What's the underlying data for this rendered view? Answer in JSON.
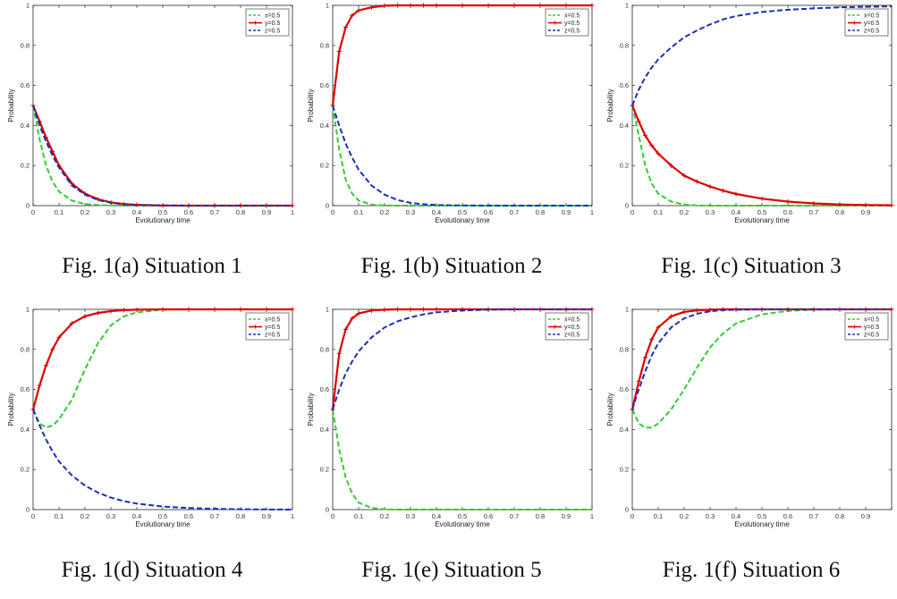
{
  "chart_data": [
    {
      "type": "line",
      "caption": "Fig. 1(a) Situation 1",
      "xlabel": "Evolutionary time",
      "ylabel": "Probability",
      "xlim": [
        0,
        1
      ],
      "ylim": [
        0,
        1
      ],
      "x_ticks": [
        "0",
        "0.1",
        "0.2",
        "0.3",
        "0.4",
        "0.5",
        "0.6",
        "0.7",
        "0.8",
        "0.9",
        "1"
      ],
      "y_ticks": [
        "0",
        "0.2",
        "0.4",
        "0.6",
        "0.8",
        "1"
      ],
      "legend_position": "top-right",
      "x": [
        0,
        0.025,
        0.05,
        0.075,
        0.1,
        0.15,
        0.2,
        0.25,
        0.3,
        0.35,
        0.4,
        0.5,
        0.6,
        0.7,
        0.8,
        0.9,
        1
      ],
      "series": [
        {
          "name": "x=0.5",
          "color": "#33cc33",
          "style": "dashed",
          "values": [
            0.5,
            0.33,
            0.2,
            0.12,
            0.07,
            0.025,
            0.008,
            0.003,
            0.001,
            0,
            0,
            0,
            0,
            0,
            0,
            0,
            0
          ]
        },
        {
          "name": "y=0.5",
          "color": "#dd0000",
          "style": "solid-plus",
          "values": [
            0.5,
            0.42,
            0.34,
            0.27,
            0.2,
            0.11,
            0.06,
            0.032,
            0.016,
            0.008,
            0.004,
            0.001,
            0,
            0,
            0,
            0,
            0
          ]
        },
        {
          "name": "z=0.5",
          "color": "#1c2fb5",
          "style": "dashed",
          "values": [
            0.5,
            0.4,
            0.32,
            0.25,
            0.19,
            0.1,
            0.055,
            0.028,
            0.014,
            0.007,
            0.003,
            0.001,
            0,
            0,
            0,
            0,
            0
          ]
        }
      ]
    },
    {
      "type": "line",
      "caption": "Fig. 1(b) Situation 2",
      "xlabel": "Evolutionary time",
      "ylabel": "Probability",
      "xlim": [
        0,
        1
      ],
      "ylim": [
        0,
        1
      ],
      "x_ticks": [
        "0",
        "0.1",
        "0.2",
        "0.3",
        "0.4",
        "0.5",
        "0.6",
        "0.7",
        "0.8",
        "0.9",
        "1"
      ],
      "y_ticks": [
        "0",
        "0.2",
        "0.4",
        "0.6",
        "0.8",
        "1"
      ],
      "legend_position": "top-right",
      "x": [
        0,
        0.025,
        0.05,
        0.075,
        0.1,
        0.15,
        0.2,
        0.25,
        0.3,
        0.35,
        0.4,
        0.5,
        0.6,
        0.7,
        0.8,
        0.9,
        1
      ],
      "series": [
        {
          "name": "x=0.5",
          "color": "#33cc33",
          "style": "dashed",
          "values": [
            0.5,
            0.28,
            0.13,
            0.06,
            0.025,
            0.005,
            0.001,
            0,
            0,
            0,
            0,
            0,
            0,
            0,
            0,
            0,
            0
          ]
        },
        {
          "name": "y=0.5",
          "color": "#dd0000",
          "style": "solid-plus",
          "values": [
            0.5,
            0.77,
            0.89,
            0.95,
            0.975,
            0.99,
            0.998,
            1,
            1,
            1,
            1,
            1,
            1,
            1,
            1,
            1,
            1
          ]
        },
        {
          "name": "z=0.5",
          "color": "#1c2fb5",
          "style": "dashed",
          "values": [
            0.5,
            0.4,
            0.31,
            0.24,
            0.18,
            0.1,
            0.055,
            0.028,
            0.014,
            0.007,
            0.003,
            0.001,
            0,
            0,
            0,
            0,
            0
          ]
        }
      ]
    },
    {
      "type": "line",
      "caption": "Fig. 1(c) Situation 3",
      "xlabel": "Evolutionary time",
      "ylabel": "Probability",
      "xlim": [
        0,
        1
      ],
      "ylim": [
        0,
        1
      ],
      "x_ticks": [
        "0",
        "0.1",
        "0.2",
        "0.3",
        "0.4",
        "0.5",
        "0.6",
        "0.7",
        "0.8",
        "0.9",
        ""
      ],
      "y_ticks": [
        "0",
        "0.2",
        "0.4",
        "0.6",
        "0.8",
        "1"
      ],
      "legend_position": "top-right",
      "x": [
        0,
        0.025,
        0.05,
        0.075,
        0.1,
        0.15,
        0.2,
        0.25,
        0.3,
        0.35,
        0.4,
        0.5,
        0.6,
        0.7,
        0.8,
        0.9,
        1
      ],
      "series": [
        {
          "name": "x=0.5",
          "color": "#33cc33",
          "style": "dashed",
          "values": [
            0.5,
            0.35,
            0.2,
            0.11,
            0.06,
            0.02,
            0.005,
            0.001,
            0,
            0,
            0,
            0,
            0,
            0,
            0,
            0,
            0
          ]
        },
        {
          "name": "y=0.5",
          "color": "#dd0000",
          "style": "solid-plus",
          "values": [
            0.5,
            0.42,
            0.35,
            0.3,
            0.26,
            0.2,
            0.15,
            0.12,
            0.095,
            0.075,
            0.058,
            0.035,
            0.02,
            0.011,
            0.006,
            0.003,
            0.002
          ]
        },
        {
          "name": "z=0.5",
          "color": "#1c2fb5",
          "style": "dashed",
          "values": [
            0.5,
            0.58,
            0.64,
            0.69,
            0.73,
            0.79,
            0.84,
            0.875,
            0.905,
            0.93,
            0.947,
            0.967,
            0.978,
            0.985,
            0.99,
            0.993,
            0.995
          ]
        }
      ]
    },
    {
      "type": "line",
      "caption": "Fig. 1(d) Situation 4",
      "xlabel": "Evolutionary time",
      "ylabel": "Probability",
      "xlim": [
        0,
        1
      ],
      "ylim": [
        0,
        1
      ],
      "x_ticks": [
        "0",
        "0.1",
        "0.2",
        "0.3",
        "0.4",
        "0.5",
        "0.6",
        "0.7",
        "0.8",
        "0.9",
        "1"
      ],
      "y_ticks": [
        "0",
        "0.2",
        "0.4",
        "0.6",
        "0.8",
        "1"
      ],
      "legend_position": "top-right",
      "x": [
        0,
        0.025,
        0.05,
        0.075,
        0.1,
        0.15,
        0.2,
        0.25,
        0.3,
        0.35,
        0.4,
        0.5,
        0.6,
        0.7,
        0.8,
        0.9,
        1
      ],
      "series": [
        {
          "name": "x=0.5",
          "color": "#33cc33",
          "style": "dashed",
          "values": [
            0.5,
            0.43,
            0.41,
            0.42,
            0.45,
            0.55,
            0.7,
            0.83,
            0.92,
            0.965,
            0.985,
            0.998,
            1,
            1,
            1,
            1,
            1
          ]
        },
        {
          "name": "y=0.5",
          "color": "#dd0000",
          "style": "solid-plus",
          "values": [
            0.5,
            0.62,
            0.72,
            0.8,
            0.86,
            0.93,
            0.965,
            0.982,
            0.991,
            0.996,
            0.998,
            1,
            1,
            1,
            1,
            1,
            1
          ]
        },
        {
          "name": "z=0.5",
          "color": "#1c2fb5",
          "style": "dashed",
          "values": [
            0.5,
            0.42,
            0.35,
            0.29,
            0.24,
            0.17,
            0.12,
            0.085,
            0.06,
            0.042,
            0.03,
            0.015,
            0.008,
            0.004,
            0.002,
            0.001,
            0
          ]
        }
      ]
    },
    {
      "type": "line",
      "caption": "Fig. 1(e) Situation 5",
      "xlabel": "Evolutionary time",
      "ylabel": "Probability",
      "xlim": [
        0,
        1
      ],
      "ylim": [
        0,
        1
      ],
      "x_ticks": [
        "0",
        "0.1",
        "0.2",
        "0.3",
        "0.4",
        "0.5",
        "0.6",
        "0.7",
        "0.8",
        "0.9",
        "1"
      ],
      "y_ticks": [
        "0",
        "0.2",
        "0.4",
        "0.6",
        "0.8",
        "1"
      ],
      "legend_position": "top-right",
      "x": [
        0,
        0.025,
        0.05,
        0.075,
        0.1,
        0.15,
        0.2,
        0.25,
        0.3,
        0.35,
        0.4,
        0.5,
        0.6,
        0.7,
        0.8,
        0.9,
        1
      ],
      "series": [
        {
          "name": "x=0.5",
          "color": "#33cc33",
          "style": "dashed",
          "values": [
            0.5,
            0.3,
            0.16,
            0.08,
            0.035,
            0.008,
            0.002,
            0,
            0,
            0,
            0,
            0,
            0,
            0,
            0,
            0,
            0
          ]
        },
        {
          "name": "y=0.5",
          "color": "#dd0000",
          "style": "solid-plus",
          "values": [
            0.5,
            0.78,
            0.9,
            0.955,
            0.98,
            0.994,
            0.998,
            1,
            1,
            1,
            1,
            1,
            1,
            1,
            1,
            1,
            1
          ]
        },
        {
          "name": "z=0.5",
          "color": "#1c2fb5",
          "style": "dashed",
          "values": [
            0.5,
            0.6,
            0.68,
            0.74,
            0.79,
            0.86,
            0.91,
            0.94,
            0.96,
            0.975,
            0.985,
            0.994,
            0.998,
            1,
            1,
            1,
            1
          ]
        }
      ]
    },
    {
      "type": "line",
      "caption": "Fig. 1(f) Situation 6",
      "xlabel": "Evolutionary time",
      "ylabel": "Probability",
      "xlim": [
        0,
        1
      ],
      "ylim": [
        0,
        1
      ],
      "x_ticks": [
        "0",
        "0.1",
        "0.2",
        "0.3",
        "0.4",
        "0.5",
        "0.6",
        "0.7",
        "0.8",
        "0.9",
        ""
      ],
      "y_ticks": [
        "0",
        "0.2",
        "0.4",
        "0.6",
        "0.8",
        "1"
      ],
      "legend_position": "top-right",
      "x": [
        0,
        0.025,
        0.05,
        0.075,
        0.1,
        0.15,
        0.2,
        0.25,
        0.3,
        0.35,
        0.4,
        0.5,
        0.6,
        0.7,
        0.8,
        0.9,
        1
      ],
      "series": [
        {
          "name": "x=0.5",
          "color": "#33cc33",
          "style": "dashed",
          "values": [
            0.5,
            0.43,
            0.41,
            0.41,
            0.43,
            0.5,
            0.6,
            0.71,
            0.81,
            0.88,
            0.93,
            0.975,
            0.992,
            0.998,
            1,
            1,
            1
          ]
        },
        {
          "name": "y=0.5",
          "color": "#dd0000",
          "style": "solid-plus",
          "values": [
            0.5,
            0.64,
            0.76,
            0.85,
            0.91,
            0.965,
            0.987,
            0.995,
            0.998,
            1,
            1,
            1,
            1,
            1,
            1,
            1,
            1
          ]
        },
        {
          "name": "z=0.5",
          "color": "#1c2fb5",
          "style": "dashed",
          "values": [
            0.5,
            0.6,
            0.69,
            0.77,
            0.83,
            0.91,
            0.955,
            0.978,
            0.99,
            0.996,
            0.998,
            1,
            1,
            1,
            1,
            1,
            1
          ]
        }
      ]
    }
  ]
}
